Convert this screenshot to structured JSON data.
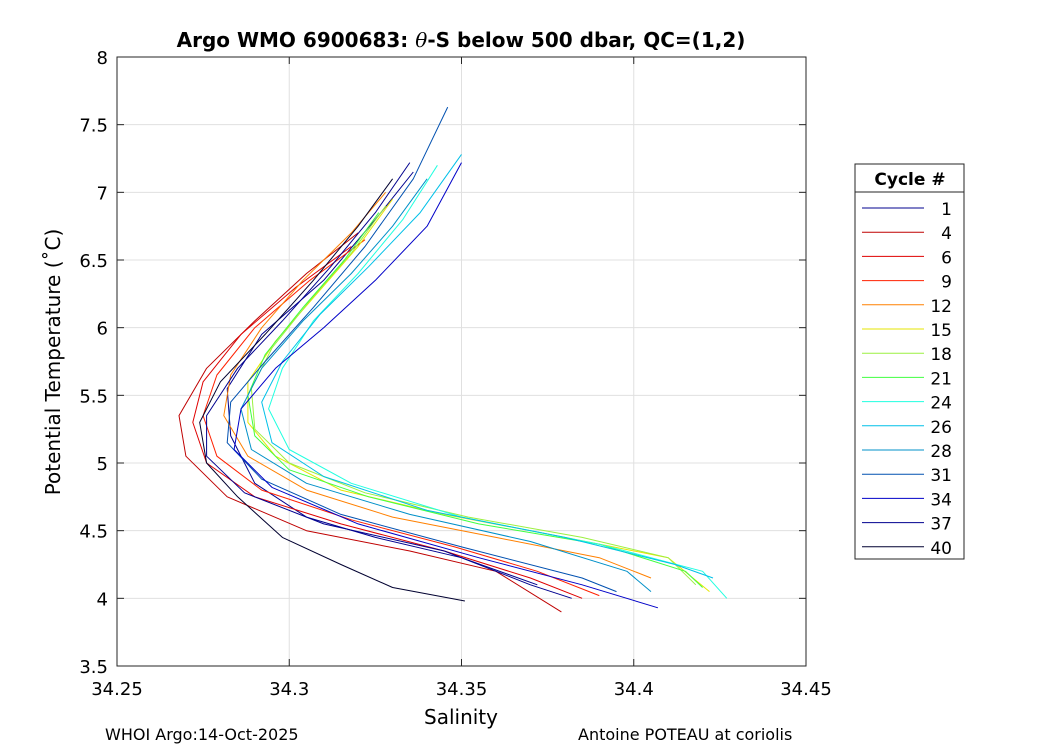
{
  "chart_data": {
    "type": "line",
    "title": "Argo WMO 6900683: θ-S below 500 dbar,  QC=(1,2)",
    "title_parts": {
      "prefix": "Argo WMO 6900683: ",
      "theta": "θ",
      "suffix": "-S below 500 dbar,  QC=(1,2)"
    },
    "xlabel": "Salinity",
    "ylabel": "Potential Temperature (˚C)",
    "xlim": [
      34.25,
      34.45
    ],
    "ylim": [
      3.5,
      8
    ],
    "xticks": [
      "34.25",
      "34.3",
      "34.35",
      "34.4",
      "34.45"
    ],
    "yticks": [
      "3.5",
      "4",
      "4.5",
      "5",
      "5.5",
      "6",
      "6.5",
      "7",
      "7.5",
      "8"
    ],
    "grid": true,
    "legend": {
      "title": "Cycle #",
      "placement": "right",
      "entries": [
        {
          "label": "1",
          "color": "#00008f"
        },
        {
          "label": "4",
          "color": "#bf0000"
        },
        {
          "label": "6",
          "color": "#df0000"
        },
        {
          "label": "9",
          "color": "#ff2000"
        },
        {
          "label": "12",
          "color": "#ff8000"
        },
        {
          "label": "15",
          "color": "#e6e600"
        },
        {
          "label": "18",
          "color": "#9cf040"
        },
        {
          "label": "21",
          "color": "#40ff40"
        },
        {
          "label": "24",
          "color": "#20ffe0"
        },
        {
          "label": "26",
          "color": "#00c0e8"
        },
        {
          "label": "28",
          "color": "#0090c8"
        },
        {
          "label": "31",
          "color": "#0050b0"
        },
        {
          "label": "34",
          "color": "#0000c8"
        },
        {
          "label": "37",
          "color": "#00008f"
        },
        {
          "label": "40",
          "color": "#000030"
        }
      ]
    },
    "series": [
      {
        "name": "1",
        "color": "#00008f",
        "points": [
          [
            34.336,
            7.15
          ],
          [
            34.325,
            6.8
          ],
          [
            34.31,
            6.35
          ],
          [
            34.292,
            5.95
          ],
          [
            34.282,
            5.55
          ],
          [
            34.283,
            5.2
          ],
          [
            34.29,
            4.85
          ],
          [
            34.305,
            4.6
          ],
          [
            34.325,
            4.45
          ],
          [
            34.35,
            4.3
          ],
          [
            34.372,
            4.1
          ]
        ]
      },
      {
        "name": "4",
        "color": "#bf0000",
        "points": [
          [
            34.32,
            6.7
          ],
          [
            34.305,
            6.4
          ],
          [
            34.29,
            6.05
          ],
          [
            34.276,
            5.7
          ],
          [
            34.268,
            5.35
          ],
          [
            34.27,
            5.05
          ],
          [
            34.282,
            4.75
          ],
          [
            34.305,
            4.5
          ],
          [
            34.335,
            4.35
          ],
          [
            34.36,
            4.2
          ],
          [
            34.379,
            3.9
          ]
        ]
      },
      {
        "name": "6",
        "color": "#df0000",
        "points": [
          [
            34.318,
            6.6
          ],
          [
            34.302,
            6.3
          ],
          [
            34.286,
            5.95
          ],
          [
            34.275,
            5.6
          ],
          [
            34.272,
            5.3
          ],
          [
            34.276,
            5.0
          ],
          [
            34.29,
            4.75
          ],
          [
            34.315,
            4.55
          ],
          [
            34.345,
            4.35
          ],
          [
            34.37,
            4.15
          ],
          [
            34.385,
            4.0
          ]
        ]
      },
      {
        "name": "9",
        "color": "#ff2000",
        "points": [
          [
            34.322,
            6.65
          ],
          [
            34.306,
            6.35
          ],
          [
            34.29,
            6.0
          ],
          [
            34.279,
            5.65
          ],
          [
            34.275,
            5.35
          ],
          [
            34.279,
            5.05
          ],
          [
            34.292,
            4.8
          ],
          [
            34.318,
            4.58
          ],
          [
            34.348,
            4.38
          ],
          [
            34.372,
            4.2
          ],
          [
            34.39,
            4.02
          ]
        ]
      },
      {
        "name": "12",
        "color": "#ff8000",
        "points": [
          [
            34.328,
            7.0
          ],
          [
            34.318,
            6.7
          ],
          [
            34.304,
            6.35
          ],
          [
            34.292,
            6.0
          ],
          [
            34.283,
            5.65
          ],
          [
            34.281,
            5.35
          ],
          [
            34.288,
            5.05
          ],
          [
            34.305,
            4.8
          ],
          [
            34.33,
            4.6
          ],
          [
            34.36,
            4.45
          ],
          [
            34.39,
            4.3
          ],
          [
            34.405,
            4.15
          ]
        ]
      },
      {
        "name": "15",
        "color": "#e6e600",
        "points": [
          [
            34.33,
            6.95
          ],
          [
            34.32,
            6.6
          ],
          [
            34.308,
            6.25
          ],
          [
            34.296,
            5.9
          ],
          [
            34.288,
            5.6
          ],
          [
            34.288,
            5.3
          ],
          [
            34.296,
            5.05
          ],
          [
            34.315,
            4.8
          ],
          [
            34.345,
            4.62
          ],
          [
            34.38,
            4.45
          ],
          [
            34.41,
            4.3
          ],
          [
            34.422,
            4.05
          ]
        ]
      },
      {
        "name": "18",
        "color": "#9cf040",
        "points": [
          [
            34.328,
            6.9
          ],
          [
            34.318,
            6.55
          ],
          [
            34.306,
            6.2
          ],
          [
            34.295,
            5.85
          ],
          [
            34.289,
            5.55
          ],
          [
            34.29,
            5.25
          ],
          [
            34.3,
            5.0
          ],
          [
            34.322,
            4.78
          ],
          [
            34.352,
            4.6
          ],
          [
            34.385,
            4.45
          ],
          [
            34.41,
            4.3
          ],
          [
            34.418,
            4.1
          ]
        ]
      },
      {
        "name": "21",
        "color": "#40ff40",
        "points": [
          [
            34.326,
            6.85
          ],
          [
            34.316,
            6.5
          ],
          [
            34.304,
            6.15
          ],
          [
            34.293,
            5.8
          ],
          [
            34.288,
            5.5
          ],
          [
            34.29,
            5.2
          ],
          [
            34.3,
            4.95
          ],
          [
            34.323,
            4.75
          ],
          [
            34.355,
            4.55
          ],
          [
            34.39,
            4.4
          ],
          [
            34.415,
            4.2
          ],
          [
            34.42,
            4.08
          ]
        ]
      },
      {
        "name": "24",
        "color": "#20ffe0",
        "points": [
          [
            34.343,
            7.2
          ],
          [
            34.333,
            6.8
          ],
          [
            34.32,
            6.4
          ],
          [
            34.307,
            6.05
          ],
          [
            34.298,
            5.7
          ],
          [
            34.294,
            5.4
          ],
          [
            34.3,
            5.1
          ],
          [
            34.318,
            4.85
          ],
          [
            34.35,
            4.6
          ],
          [
            34.39,
            4.4
          ],
          [
            34.42,
            4.2
          ],
          [
            34.427,
            4.0
          ]
        ]
      },
      {
        "name": "26",
        "color": "#00c0e8",
        "points": [
          [
            34.35,
            7.28
          ],
          [
            34.338,
            6.85
          ],
          [
            34.323,
            6.45
          ],
          [
            34.309,
            6.1
          ],
          [
            34.298,
            5.75
          ],
          [
            34.292,
            5.45
          ],
          [
            34.295,
            5.15
          ],
          [
            34.31,
            4.9
          ],
          [
            34.34,
            4.65
          ],
          [
            34.38,
            4.45
          ],
          [
            34.412,
            4.25
          ],
          [
            34.423,
            4.15
          ]
        ]
      },
      {
        "name": "28",
        "color": "#0090c8",
        "points": [
          [
            34.34,
            7.1
          ],
          [
            34.33,
            6.75
          ],
          [
            34.318,
            6.4
          ],
          [
            34.304,
            6.05
          ],
          [
            34.292,
            5.7
          ],
          [
            34.286,
            5.4
          ],
          [
            34.289,
            5.1
          ],
          [
            34.305,
            4.85
          ],
          [
            34.335,
            4.62
          ],
          [
            34.37,
            4.42
          ],
          [
            34.398,
            4.2
          ],
          [
            34.405,
            4.05
          ]
        ]
      },
      {
        "name": "31",
        "color": "#0050b0",
        "points": [
          [
            34.346,
            7.63
          ],
          [
            34.336,
            7.1
          ],
          [
            34.322,
            6.6
          ],
          [
            34.307,
            6.15
          ],
          [
            34.293,
            5.75
          ],
          [
            34.283,
            5.45
          ],
          [
            34.282,
            5.15
          ],
          [
            34.292,
            4.88
          ],
          [
            34.315,
            4.62
          ],
          [
            34.35,
            4.38
          ],
          [
            34.385,
            4.15
          ],
          [
            34.395,
            4.05
          ]
        ]
      },
      {
        "name": "34",
        "color": "#0000c8",
        "points": [
          [
            34.35,
            7.22
          ],
          [
            34.34,
            6.75
          ],
          [
            34.325,
            6.35
          ],
          [
            34.31,
            6.0
          ],
          [
            34.296,
            5.7
          ],
          [
            34.286,
            5.4
          ],
          [
            34.284,
            5.1
          ],
          [
            34.295,
            4.82
          ],
          [
            34.32,
            4.55
          ],
          [
            34.355,
            4.3
          ],
          [
            34.385,
            4.1
          ],
          [
            34.407,
            3.93
          ]
        ]
      },
      {
        "name": "37",
        "color": "#00008f",
        "points": [
          [
            34.335,
            7.22
          ],
          [
            34.325,
            6.85
          ],
          [
            34.312,
            6.45
          ],
          [
            34.298,
            6.05
          ],
          [
            34.285,
            5.7
          ],
          [
            34.276,
            5.35
          ],
          [
            34.276,
            5.05
          ],
          [
            34.287,
            4.78
          ],
          [
            34.31,
            4.55
          ],
          [
            34.345,
            4.35
          ],
          [
            34.37,
            4.1
          ],
          [
            34.382,
            4.0
          ]
        ]
      },
      {
        "name": "40",
        "color": "#000030",
        "points": [
          [
            34.33,
            7.1
          ],
          [
            34.32,
            6.75
          ],
          [
            34.307,
            6.35
          ],
          [
            34.293,
            5.95
          ],
          [
            34.28,
            5.6
          ],
          [
            34.274,
            5.3
          ],
          [
            34.276,
            5.0
          ],
          [
            34.285,
            4.75
          ],
          [
            34.298,
            4.45
          ],
          [
            34.315,
            4.25
          ],
          [
            34.33,
            4.08
          ],
          [
            34.351,
            3.98
          ]
        ]
      }
    ]
  },
  "footer": {
    "left": "WHOI Argo:14-Oct-2025",
    "right": "Antoine POTEAU at coriolis"
  }
}
